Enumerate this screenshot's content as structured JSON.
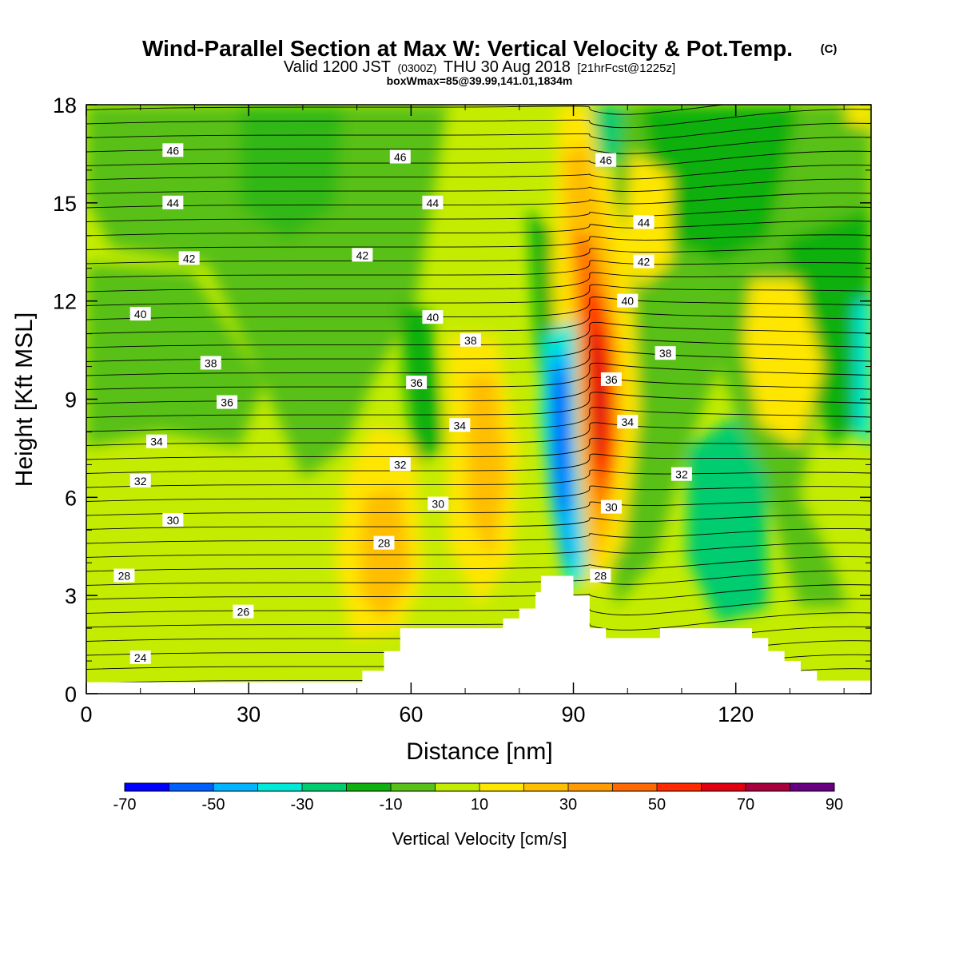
{
  "title": {
    "main": "Wind-Parallel Section at Max W: Vertical Velocity & Pot.Temp.",
    "copyright": "(C)",
    "valid_prefix": "Valid 1200 JST",
    "valid_utc": "(0300Z)",
    "valid_date": "THU 30 Aug 2018",
    "forecast": "[21hrFcst@1225z]",
    "boxwmax": "boxWmax=85@39.99,141.01,1834m"
  },
  "chart_data": {
    "type": "heatmap",
    "xlabel": "Distance [nm]",
    "ylabel": "Height [Kft MSL]",
    "xlim": [
      0,
      145
    ],
    "ylim": [
      0,
      18
    ],
    "x_ticks": [
      "0",
      "30",
      "60",
      "90",
      "120"
    ],
    "y_ticks": [
      "0",
      "3",
      "6",
      "9",
      "12",
      "15",
      "18"
    ],
    "colorbar": {
      "label": "Vertical Velocity [cm/s]",
      "tick_labels": [
        "-70",
        "-50",
        "-30",
        "-10",
        "10",
        "30",
        "50",
        "70",
        "90"
      ],
      "bounds": [
        -70,
        90
      ],
      "step": 10,
      "colors": [
        "#0000ff",
        "#0060ff",
        "#00b4ff",
        "#00e8d8",
        "#00cc70",
        "#10b010",
        "#58c018",
        "#c4ec00",
        "#ffe600",
        "#ffbe00",
        "#ff9a00",
        "#ff6a00",
        "#ff2a00",
        "#de0010",
        "#a8003c",
        "#660080"
      ]
    },
    "theta_contour_labels": [
      {
        "value": "46",
        "x": 16,
        "y": 16.6
      },
      {
        "value": "44",
        "x": 16,
        "y": 15.0
      },
      {
        "value": "42",
        "x": 19,
        "y": 13.3
      },
      {
        "value": "40",
        "x": 10,
        "y": 11.6
      },
      {
        "value": "38",
        "x": 23,
        "y": 10.1
      },
      {
        "value": "36",
        "x": 26,
        "y": 8.9
      },
      {
        "value": "34",
        "x": 13,
        "y": 7.7
      },
      {
        "value": "32",
        "x": 10,
        "y": 6.5
      },
      {
        "value": "30",
        "x": 16,
        "y": 5.3
      },
      {
        "value": "28",
        "x": 7,
        "y": 3.6
      },
      {
        "value": "26",
        "x": 29,
        "y": 2.5
      },
      {
        "value": "24",
        "x": 10,
        "y": 1.1
      },
      {
        "value": "46",
        "x": 58,
        "y": 16.4
      },
      {
        "value": "44",
        "x": 64,
        "y": 15.0
      },
      {
        "value": "42",
        "x": 51,
        "y": 13.4
      },
      {
        "value": "40",
        "x": 64,
        "y": 11.5
      },
      {
        "value": "38",
        "x": 71,
        "y": 10.8
      },
      {
        "value": "36",
        "x": 61,
        "y": 9.5
      },
      {
        "value": "34",
        "x": 69,
        "y": 8.2
      },
      {
        "value": "32",
        "x": 58,
        "y": 7.0
      },
      {
        "value": "30",
        "x": 65,
        "y": 5.8
      },
      {
        "value": "28",
        "x": 55,
        "y": 4.6
      },
      {
        "value": "46",
        "x": 96,
        "y": 16.3
      },
      {
        "value": "44",
        "x": 103,
        "y": 14.4
      },
      {
        "value": "42",
        "x": 103,
        "y": 13.2
      },
      {
        "value": "40",
        "x": 100,
        "y": 12.0
      },
      {
        "value": "38",
        "x": 107,
        "y": 10.4
      },
      {
        "value": "36",
        "x": 97,
        "y": 9.6
      },
      {
        "value": "34",
        "x": 100,
        "y": 8.3
      },
      {
        "value": "32",
        "x": 110,
        "y": 6.7
      },
      {
        "value": "30",
        "x": 97,
        "y": 5.7
      },
      {
        "value": "28",
        "x": 95,
        "y": 3.6
      }
    ],
    "terrain_heights": [
      {
        "x0": 0,
        "x1": 51,
        "h": 0.35
      },
      {
        "x0": 51,
        "x1": 55,
        "h": 0.7
      },
      {
        "x0": 55,
        "x1": 58,
        "h": 1.3
      },
      {
        "x0": 58,
        "x1": 77,
        "h": 2.0
      },
      {
        "x0": 77,
        "x1": 80,
        "h": 2.3
      },
      {
        "x0": 80,
        "x1": 83,
        "h": 2.6
      },
      {
        "x0": 83,
        "x1": 84,
        "h": 3.1
      },
      {
        "x0": 84,
        "x1": 87,
        "h": 3.6
      },
      {
        "x0": 87,
        "x1": 90,
        "h": 3.6
      },
      {
        "x0": 90,
        "x1": 93,
        "h": 3.0
      },
      {
        "x0": 93,
        "x1": 96,
        "h": 2.0
      },
      {
        "x0": 96,
        "x1": 106,
        "h": 1.7
      },
      {
        "x0": 106,
        "x1": 123,
        "h": 2.0
      },
      {
        "x0": 123,
        "x1": 126,
        "h": 1.7
      },
      {
        "x0": 126,
        "x1": 129,
        "h": 1.3
      },
      {
        "x0": 129,
        "x1": 132,
        "h": 1.0
      },
      {
        "x0": 132,
        "x1": 135,
        "h": 0.7
      },
      {
        "x0": 135,
        "x1": 138,
        "h": 0.4
      },
      {
        "x0": 138,
        "x1": 145,
        "h": 0.4
      }
    ]
  }
}
